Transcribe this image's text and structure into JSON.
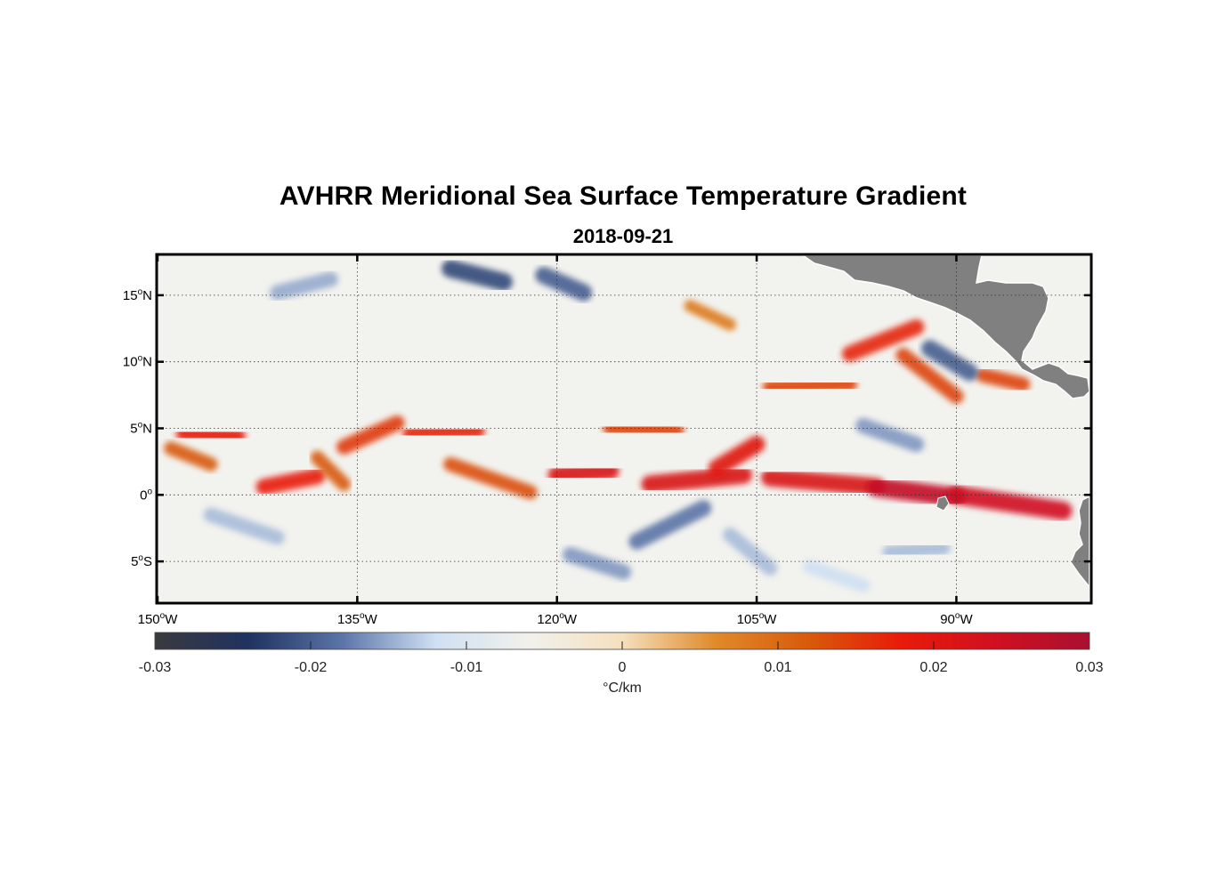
{
  "title": "AVHRR Meridional Sea Surface Temperature Gradient",
  "subtitle": "2018-09-21",
  "map": {
    "extent": {
      "lon_min": -150,
      "lon_max": -80,
      "lat_min": -8,
      "lat_max": 18
    },
    "gridlines": true,
    "land_color": "#808080",
    "lat_ticks": [
      {
        "value": 15,
        "num": "15",
        "hemi": "N"
      },
      {
        "value": 10,
        "num": "10",
        "hemi": "N"
      },
      {
        "value": 5,
        "num": "5",
        "hemi": "N"
      },
      {
        "value": 0,
        "num": "0",
        "hemi": ""
      },
      {
        "value": -5,
        "num": "5",
        "hemi": "S"
      }
    ],
    "lon_ticks": [
      {
        "value": -150,
        "num": "150",
        "hemi": "W"
      },
      {
        "value": -135,
        "num": "135",
        "hemi": "W"
      },
      {
        "value": -120,
        "num": "120",
        "hemi": "W"
      },
      {
        "value": -105,
        "num": "105",
        "hemi": "W"
      },
      {
        "value": -90,
        "num": "90",
        "hemi": "W"
      }
    ],
    "features": [
      {
        "lon": [
          -148,
          -144
        ],
        "lat": [
          4.6,
          4.4
        ],
        "value": 0.018
      },
      {
        "lon": [
          -149,
          -146
        ],
        "lat": [
          3.5,
          2.3
        ],
        "value": 0.012
      },
      {
        "lon": [
          -142,
          -138
        ],
        "lat": [
          0.6,
          1.4
        ],
        "value": 0.018
      },
      {
        "lon": [
          -138,
          -136
        ],
        "lat": [
          2.8,
          0.8
        ],
        "value": 0.012
      },
      {
        "lon": [
          -136,
          -132
        ],
        "lat": [
          3.6,
          5.4
        ],
        "value": 0.015
      },
      {
        "lon": [
          -131,
          -126
        ],
        "lat": [
          4.6,
          4.8
        ],
        "value": 0.017
      },
      {
        "lon": [
          -128,
          -122
        ],
        "lat": [
          2.3,
          0.2
        ],
        "value": 0.013
      },
      {
        "lon": [
          -120,
          -116
        ],
        "lat": [
          1.5,
          1.8
        ],
        "value": 0.022
      },
      {
        "lon": [
          -116,
          -111
        ],
        "lat": [
          5.0,
          4.8
        ],
        "value": 0.014
      },
      {
        "lon": [
          -113,
          -106
        ],
        "lat": [
          0.8,
          1.5
        ],
        "value": 0.022
      },
      {
        "lon": [
          -108,
          -105
        ],
        "lat": [
          2.0,
          3.8
        ],
        "value": 0.02
      },
      {
        "lon": [
          -104,
          -96
        ],
        "lat": [
          1.3,
          0.6
        ],
        "value": 0.022
      },
      {
        "lon": [
          -96,
          -90
        ],
        "lat": [
          0.6,
          -0.2
        ],
        "value": 0.026
      },
      {
        "lon": [
          -90,
          -82
        ],
        "lat": [
          0.0,
          -1.2
        ],
        "value": 0.024
      },
      {
        "lon": [
          -98,
          -93
        ],
        "lat": [
          10.6,
          12.6
        ],
        "value": 0.017
      },
      {
        "lon": [
          -104,
          -98
        ],
        "lat": [
          8.1,
          8.3
        ],
        "value": 0.014
      },
      {
        "lon": [
          -94,
          -90
        ],
        "lat": [
          10.5,
          7.4
        ],
        "value": 0.014
      },
      {
        "lon": [
          -88,
          -85
        ],
        "lat": [
          9.0,
          8.3
        ],
        "value": 0.014
      },
      {
        "lon": [
          -110,
          -107
        ],
        "lat": [
          14.2,
          12.8
        ],
        "value": 0.008
      },
      {
        "lon": [
          -141,
          -137
        ],
        "lat": [
          15.2,
          16.2
        ],
        "value": -0.015
      },
      {
        "lon": [
          -128,
          -124
        ],
        "lat": [
          17.0,
          16.0
        ],
        "value": -0.022
      },
      {
        "lon": [
          -121,
          -118
        ],
        "lat": [
          16.5,
          15.2
        ],
        "value": -0.02
      },
      {
        "lon": [
          -146,
          -141
        ],
        "lat": [
          -1.5,
          -3.2
        ],
        "value": -0.014
      },
      {
        "lon": [
          -114,
          -109
        ],
        "lat": [
          -3.5,
          -1.0
        ],
        "value": -0.018
      },
      {
        "lon": [
          -119,
          -115
        ],
        "lat": [
          -4.5,
          -5.8
        ],
        "value": -0.016
      },
      {
        "lon": [
          -107,
          -104
        ],
        "lat": [
          -3.0,
          -5.5
        ],
        "value": -0.014
      },
      {
        "lon": [
          -97,
          -93
        ],
        "lat": [
          5.2,
          3.8
        ],
        "value": -0.016
      },
      {
        "lon": [
          -95,
          -91
        ],
        "lat": [
          -4.3,
          -4.0
        ],
        "value": -0.014
      },
      {
        "lon": [
          -101,
          -97
        ],
        "lat": [
          -5.4,
          -6.8
        ],
        "value": -0.012
      },
      {
        "lon": [
          -92,
          -89
        ],
        "lat": [
          11.0,
          9.2
        ],
        "value": -0.02
      }
    ]
  },
  "colorbar": {
    "min": -0.03,
    "max": 0.03,
    "ticks": [
      "-0.03",
      "-0.02",
      "-0.01",
      "0",
      "0.01",
      "0.02",
      "0.03"
    ],
    "tick_values": [
      -0.03,
      -0.02,
      -0.01,
      0,
      0.01,
      0.02,
      0.03
    ],
    "unit_label": "°C/km",
    "colors": [
      "#3a3a3e",
      "#1f3260",
      "#5b74a8",
      "#cfe0f2",
      "#f1f1ec",
      "#f5e0be",
      "#e08a2a",
      "#d85a0a",
      "#e81a0a",
      "#d01020",
      "#a81030"
    ]
  }
}
